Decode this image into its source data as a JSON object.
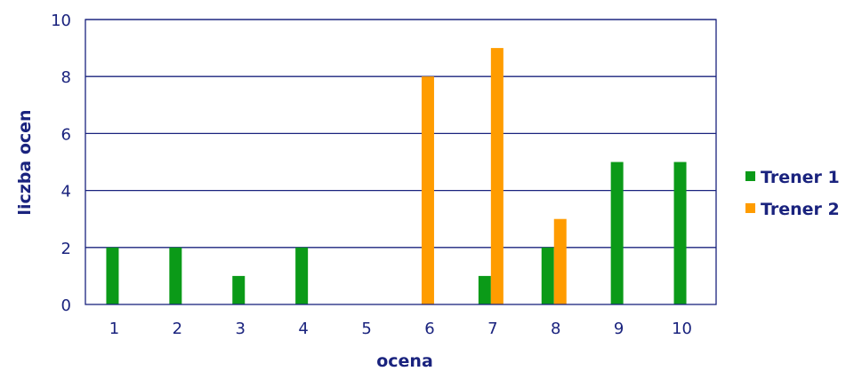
{
  "chart_data": {
    "type": "bar",
    "xlabel": "ocena",
    "ylabel": "liczba ocen",
    "categories": [
      "1",
      "2",
      "3",
      "4",
      "5",
      "6",
      "7",
      "8",
      "9",
      "10"
    ],
    "ylim": [
      0,
      10
    ],
    "yticks": [
      "0",
      "2",
      "4",
      "6",
      "8",
      "10"
    ],
    "grid": true,
    "legend_position": "right",
    "series": [
      {
        "name": "Trener 1",
        "color": "#0b9a18",
        "values": [
          2,
          2,
          1,
          2,
          0,
          0,
          1,
          2,
          5,
          5
        ]
      },
      {
        "name": "Trener 2",
        "color": "#ff9c00",
        "values": [
          0,
          0,
          0,
          0,
          0,
          8,
          9,
          3,
          0,
          0
        ]
      }
    ]
  },
  "colors": {
    "axis_text": "#1a237e",
    "grid": "#1a237e"
  }
}
